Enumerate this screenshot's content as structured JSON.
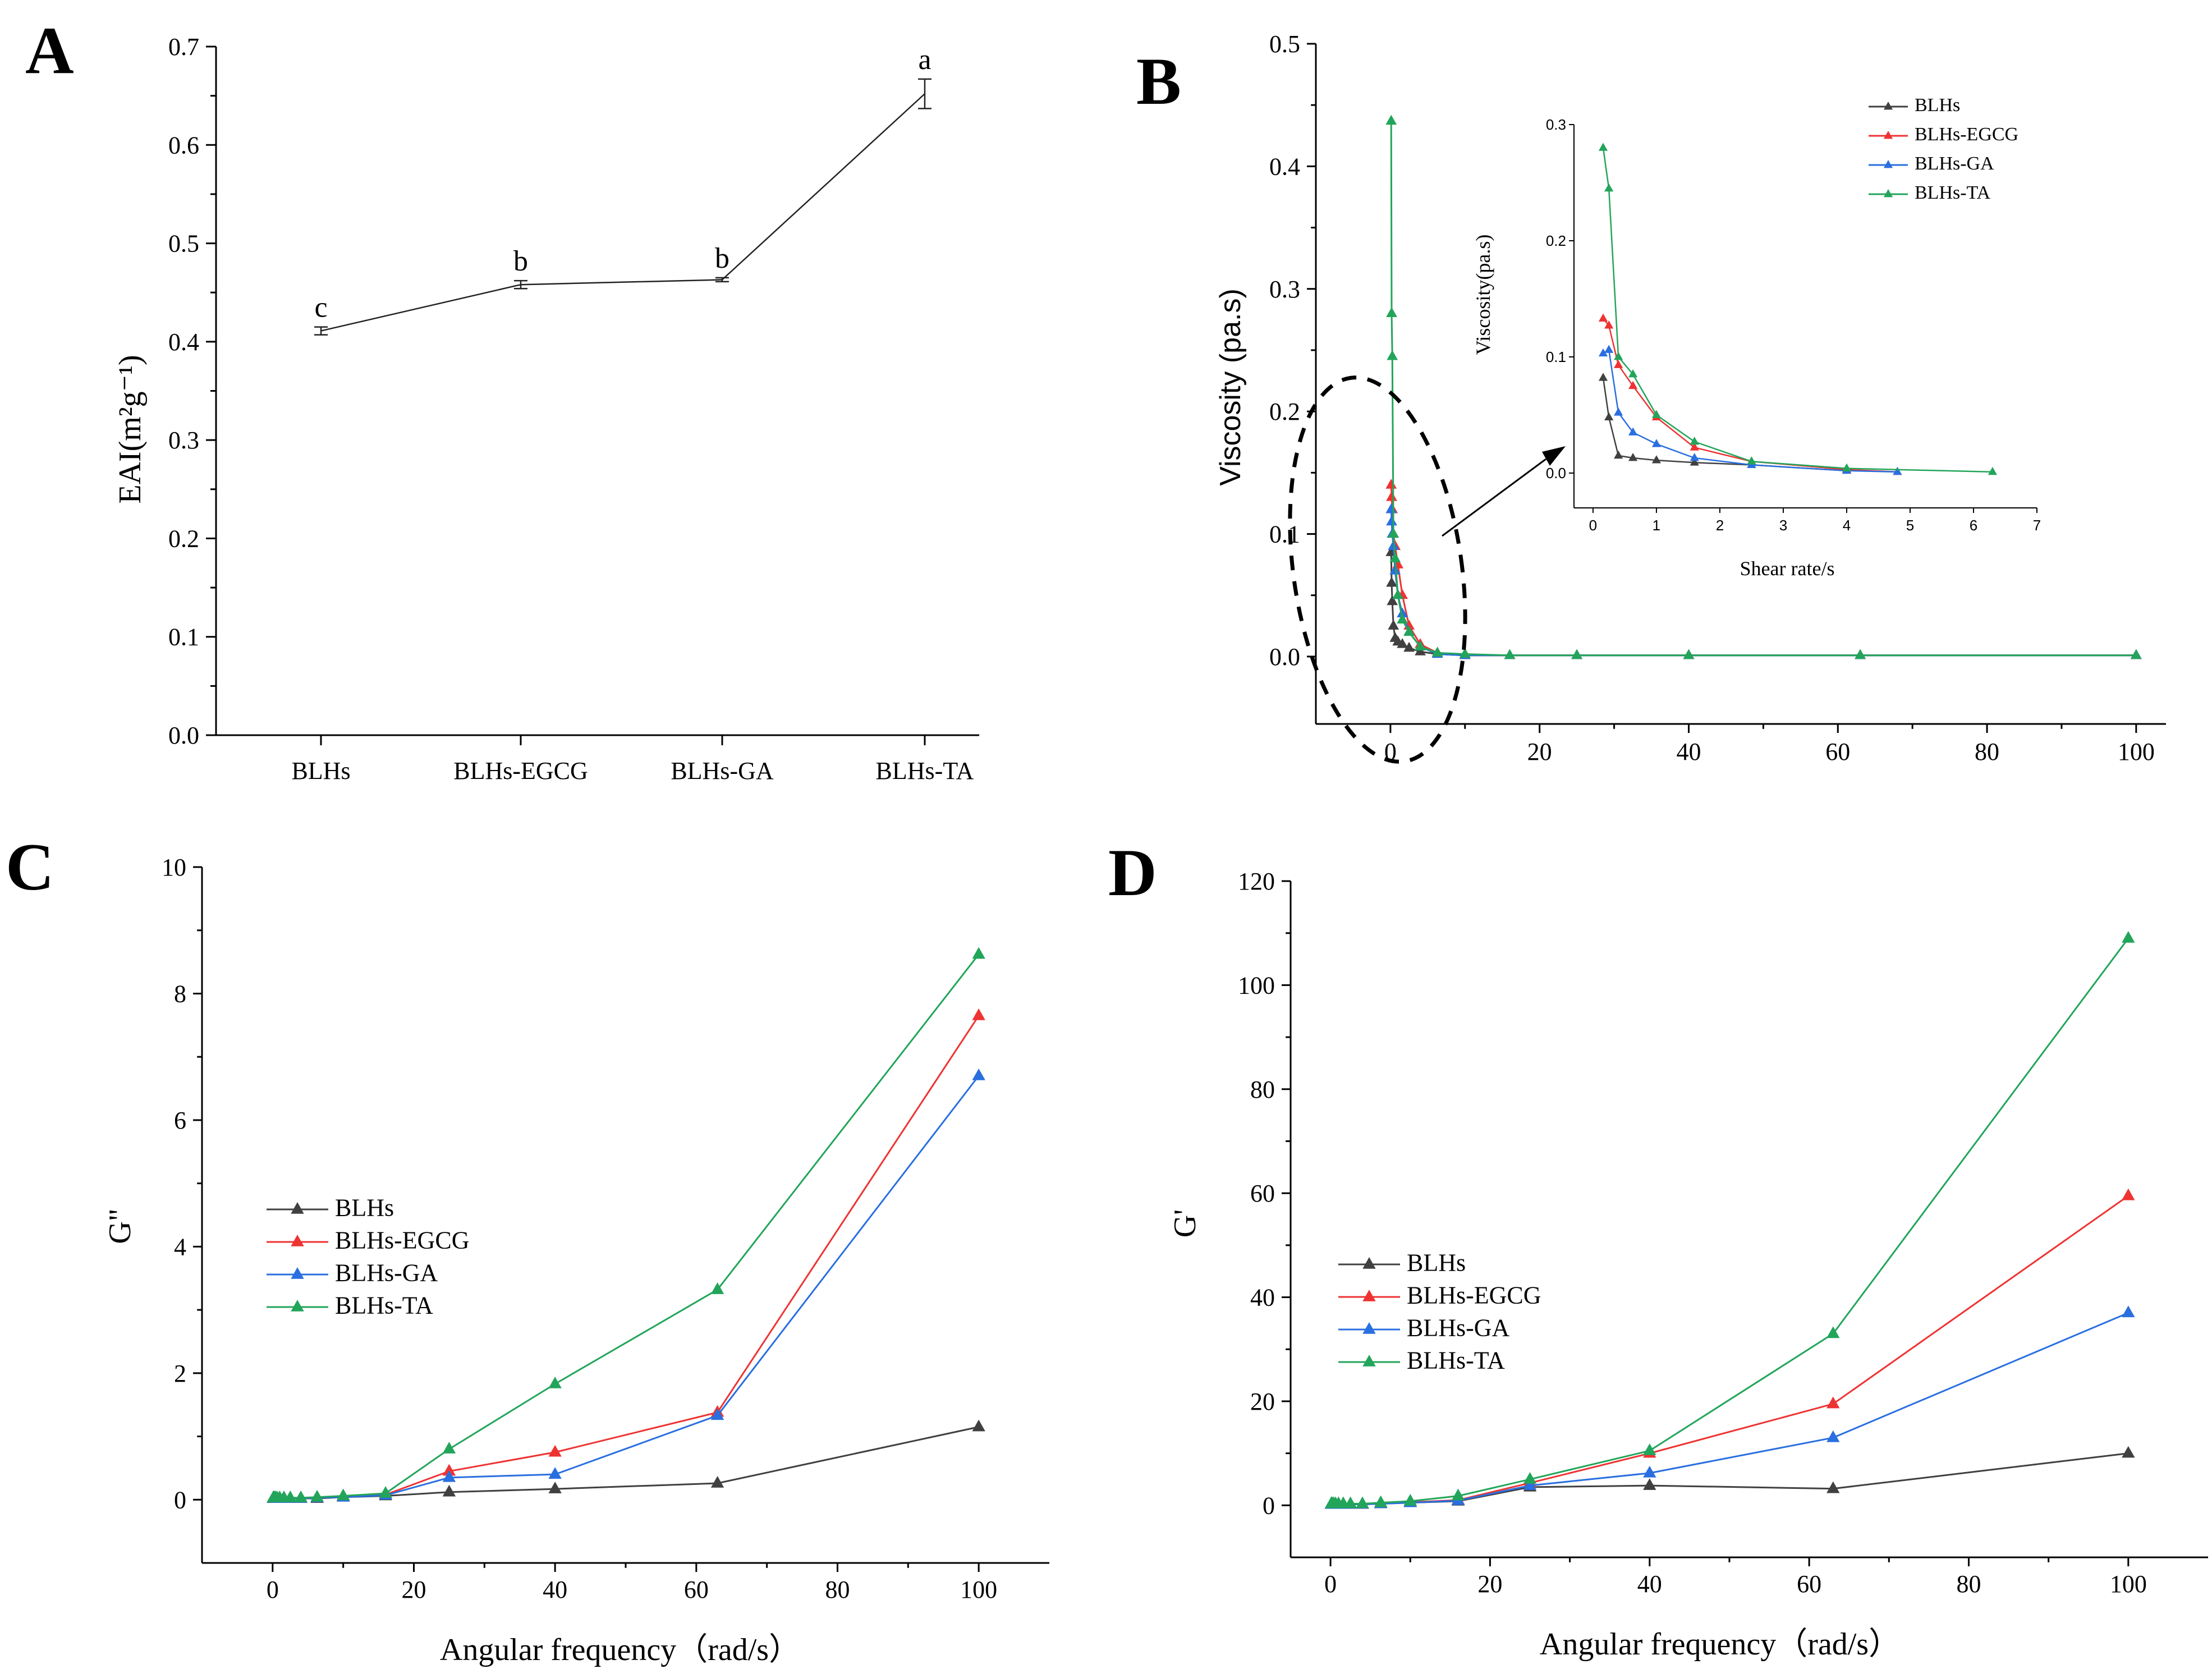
{
  "colors": {
    "BLHs": "#404040",
    "BLHs-EGCG": "#ee3333",
    "BLHs-GA": "#2a6fe0",
    "BLHs-TA": "#22a55a"
  },
  "chart_data": [
    {
      "panel": "A",
      "type": "line",
      "categories": [
        "BLHs",
        "BLHs-EGCG",
        "BLHs-GA",
        "BLHs-TA"
      ],
      "values": [
        0.411,
        0.458,
        0.463,
        0.652
      ],
      "errors": [
        0.004,
        0.004,
        0.002,
        0.015
      ],
      "significance": [
        "c",
        "b",
        "b",
        "a"
      ],
      "ylabel": "EAI(m²g⁻¹)",
      "ylim": [
        0.0,
        0.7
      ],
      "yticks": [
        "0.0",
        "0.1",
        "0.2",
        "0.3",
        "0.4",
        "0.5",
        "0.6",
        "0.7"
      ]
    },
    {
      "panel": "B",
      "type": "line",
      "ylabel": "Viscosity (pa.s)",
      "xlim": [
        -10,
        104
      ],
      "ylim": [
        -0.055,
        0.5
      ],
      "xticks": [
        "0",
        "20",
        "40",
        "60",
        "80",
        "100"
      ],
      "yticks": [
        "0.0",
        "0.1",
        "0.2",
        "0.3",
        "0.4",
        "0.5"
      ],
      "series": [
        {
          "name": "BLHs",
          "x": [
            0.1,
            0.16,
            0.25,
            0.4,
            0.63,
            1.0,
            1.6,
            2.5,
            4,
            6.3,
            10,
            16,
            25,
            40,
            63,
            100
          ],
          "y": [
            0.085,
            0.06,
            0.045,
            0.025,
            0.015,
            0.012,
            0.01,
            0.007,
            0.004,
            0.002,
            0.001,
            0.001,
            0.001,
            0.001,
            0.001,
            0.001
          ]
        },
        {
          "name": "BLHs-EGCG",
          "x": [
            0.1,
            0.16,
            0.25,
            0.4,
            0.63,
            1.0,
            1.6,
            2.5,
            4,
            6.3,
            10,
            16,
            25,
            40,
            63,
            100
          ],
          "y": [
            0.14,
            0.13,
            0.12,
            0.1,
            0.09,
            0.075,
            0.05,
            0.025,
            0.01,
            0.003,
            0.001,
            0.001,
            0.001,
            0.001,
            0.001,
            0.001
          ]
        },
        {
          "name": "BLHs-GA",
          "x": [
            0.1,
            0.16,
            0.25,
            0.4,
            0.63,
            1.0,
            1.6,
            2.5,
            4,
            6.3,
            10,
            16,
            25,
            40,
            63,
            100
          ],
          "y": [
            0.12,
            0.11,
            0.1,
            0.09,
            0.07,
            0.05,
            0.035,
            0.02,
            0.008,
            0.002,
            0.001,
            0.001,
            0.001,
            0.001,
            0.001,
            0.001
          ]
        },
        {
          "name": "BLHs-TA",
          "x": [
            0.1,
            0.16,
            0.25,
            0.4,
            0.63,
            1.0,
            1.6,
            2.5,
            4,
            6.3,
            10,
            16,
            25,
            40,
            63,
            100
          ],
          "y": [
            0.437,
            0.28,
            0.245,
            0.1,
            0.08,
            0.05,
            0.03,
            0.02,
            0.008,
            0.003,
            0.002,
            0.001,
            0.001,
            0.001,
            0.001,
            0.001
          ]
        }
      ],
      "inset": {
        "xlabel": "Shear rate/s",
        "ylabel": "Viscosity(pa.s)",
        "xlim": [
          -0.3,
          7
        ],
        "ylim": [
          -0.03,
          0.3
        ],
        "xticks": [
          "0",
          "1",
          "2",
          "3",
          "4",
          "5",
          "6",
          "7"
        ],
        "yticks": [
          "0.0",
          "0.1",
          "0.2",
          "0.3"
        ],
        "legend": [
          "BLHs",
          "BLHs-EGCG",
          "BLHs-GA",
          "BLHs-TA"
        ],
        "series": [
          {
            "name": "BLHs",
            "x": [
              0.16,
              0.25,
              0.4,
              0.63,
              1.0,
              1.6,
              2.5,
              4.0
            ],
            "y": [
              0.082,
              0.048,
              0.015,
              0.013,
              0.011,
              0.009,
              0.007,
              0.002
            ]
          },
          {
            "name": "BLHs-EGCG",
            "x": [
              0.16,
              0.25,
              0.4,
              0.63,
              1.0,
              1.6,
              2.5,
              4.0,
              4.8
            ],
            "y": [
              0.133,
              0.127,
              0.093,
              0.075,
              0.048,
              0.022,
              0.01,
              0.003,
              0.001
            ]
          },
          {
            "name": "BLHs-GA",
            "x": [
              0.16,
              0.25,
              0.4,
              0.63,
              1.0,
              1.6,
              2.5,
              4.0,
              4.8
            ],
            "y": [
              0.103,
              0.106,
              0.052,
              0.035,
              0.025,
              0.013,
              0.007,
              0.002,
              0.001
            ]
          },
          {
            "name": "BLHs-TA",
            "x": [
              0.16,
              0.25,
              0.4,
              0.63,
              1.0,
              1.6,
              2.5,
              4.0,
              6.3
            ],
            "y": [
              0.28,
              0.245,
              0.1,
              0.085,
              0.05,
              0.027,
              0.01,
              0.004,
              0.001
            ]
          }
        ]
      }
    },
    {
      "panel": "C",
      "type": "line",
      "xlabel": "Angular frequency（rad/s）",
      "ylabel": "G\"",
      "xlim": [
        -10,
        110
      ],
      "ylim": [
        -1,
        10
      ],
      "xticks": [
        "0",
        "20",
        "40",
        "60",
        "80",
        "100"
      ],
      "yticks": [
        "0",
        "2",
        "4",
        "6",
        "8",
        "10"
      ],
      "legend": [
        "BLHs",
        "BLHs-EGCG",
        "BLHs-GA",
        "BLHs-TA"
      ],
      "series": [
        {
          "name": "BLHs",
          "x": [
            0.1,
            0.16,
            0.25,
            0.4,
            0.63,
            1,
            1.6,
            2.5,
            4,
            6.3,
            10,
            16,
            25,
            40,
            63,
            100
          ],
          "y": [
            0.02,
            0.02,
            0.02,
            0.02,
            0.02,
            0.02,
            0.02,
            0.02,
            0.02,
            0.02,
            0.04,
            0.06,
            0.12,
            0.17,
            0.26,
            1.15
          ]
        },
        {
          "name": "BLHs-EGCG",
          "x": [
            0.1,
            0.16,
            0.25,
            0.4,
            0.63,
            1,
            1.6,
            2.5,
            4,
            6.3,
            10,
            16,
            25,
            40,
            63,
            100
          ],
          "y": [
            0.02,
            0.02,
            0.02,
            0.02,
            0.02,
            0.02,
            0.02,
            0.02,
            0.02,
            0.03,
            0.05,
            0.08,
            0.45,
            0.75,
            1.38,
            7.65
          ]
        },
        {
          "name": "BLHs-GA",
          "x": [
            0.1,
            0.16,
            0.25,
            0.4,
            0.63,
            1,
            1.6,
            2.5,
            4,
            6.3,
            10,
            16,
            25,
            40,
            63,
            100
          ],
          "y": [
            0.02,
            0.02,
            0.02,
            0.02,
            0.02,
            0.02,
            0.02,
            0.02,
            0.02,
            0.03,
            0.04,
            0.07,
            0.35,
            0.4,
            1.33,
            6.7
          ]
        },
        {
          "name": "BLHs-TA",
          "x": [
            0.1,
            0.16,
            0.25,
            0.4,
            0.63,
            1,
            1.6,
            2.5,
            4,
            6.3,
            10,
            16,
            25,
            40,
            63,
            100
          ],
          "y": [
            0.03,
            0.03,
            0.03,
            0.03,
            0.03,
            0.03,
            0.03,
            0.03,
            0.03,
            0.04,
            0.06,
            0.1,
            0.8,
            1.83,
            3.32,
            8.62
          ]
        }
      ]
    },
    {
      "panel": "D",
      "type": "line",
      "xlabel": "Angular frequency（rad/s）",
      "ylabel": "G'",
      "xlim": [
        -5,
        110
      ],
      "ylim": [
        -10,
        120
      ],
      "xticks": [
        "0",
        "20",
        "40",
        "60",
        "80",
        "100"
      ],
      "yticks": [
        "0",
        "20",
        "40",
        "60",
        "80",
        "100",
        "120"
      ],
      "legend": [
        "BLHs",
        "BLHs-EGCG",
        "BLHs-GA",
        "BLHs-TA"
      ],
      "series": [
        {
          "name": "BLHs",
          "x": [
            0.1,
            0.16,
            0.25,
            0.4,
            0.63,
            1,
            1.6,
            2.5,
            4,
            6.3,
            10,
            16,
            25,
            40,
            63,
            100
          ],
          "y": [
            0.2,
            0.2,
            0.2,
            0.2,
            0.2,
            0.2,
            0.2,
            0.2,
            0.2,
            0.3,
            0.5,
            0.8,
            3.5,
            3.8,
            3.2,
            10
          ]
        },
        {
          "name": "BLHs-EGCG",
          "x": [
            0.1,
            0.16,
            0.25,
            0.4,
            0.63,
            1,
            1.6,
            2.5,
            4,
            6.3,
            10,
            16,
            25,
            40,
            63,
            100
          ],
          "y": [
            0.2,
            0.2,
            0.2,
            0.2,
            0.2,
            0.2,
            0.2,
            0.2,
            0.2,
            0.3,
            0.6,
            1.0,
            4.3,
            10,
            19.5,
            59.5
          ]
        },
        {
          "name": "BLHs-GA",
          "x": [
            0.1,
            0.16,
            0.25,
            0.4,
            0.63,
            1,
            1.6,
            2.5,
            4,
            6.3,
            10,
            16,
            25,
            40,
            63,
            100
          ],
          "y": [
            0.2,
            0.2,
            0.2,
            0.2,
            0.2,
            0.2,
            0.2,
            0.2,
            0.2,
            0.3,
            0.5,
            0.9,
            3.8,
            6.2,
            13,
            37
          ]
        },
        {
          "name": "BLHs-TA",
          "x": [
            0.1,
            0.16,
            0.25,
            0.4,
            0.63,
            1,
            1.6,
            2.5,
            4,
            6.3,
            10,
            16,
            25,
            40,
            63,
            100
          ],
          "y": [
            0.3,
            0.3,
            0.3,
            0.3,
            0.3,
            0.3,
            0.3,
            0.3,
            0.3,
            0.5,
            0.8,
            1.8,
            5,
            10.5,
            33,
            109
          ]
        }
      ]
    }
  ]
}
